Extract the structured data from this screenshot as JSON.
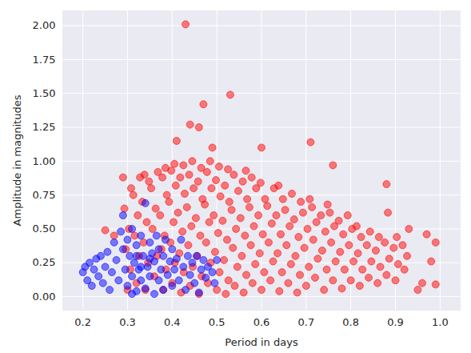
{
  "chart_data": {
    "type": "scatter",
    "x_label": "Period in days",
    "y_label": "Amplitude in magnitudes",
    "xlim": [
      0.155,
      1.045
    ],
    "ylim": [
      -0.1,
      2.11
    ],
    "xticks": [
      0.2,
      0.3,
      0.4,
      0.5,
      0.6,
      0.7,
      0.8,
      0.9,
      {
        "value": 1.0,
        "label": "1.0"
      }
    ],
    "yticks": [
      {
        "value": 0,
        "label": "0.00"
      },
      {
        "value": 0.25,
        "label": "0.25"
      },
      {
        "value": 0.5,
        "label": "0.50"
      },
      {
        "value": 0.75,
        "label": "0.75"
      },
      {
        "value": 1.0,
        "label": "1.00"
      },
      {
        "value": 1.25,
        "label": "1.25"
      },
      {
        "value": 1.5,
        "label": "1.50"
      },
      {
        "value": 1.75,
        "label": "1.75"
      },
      {
        "value": 2.0,
        "label": "2.00"
      }
    ],
    "grid": true,
    "series": [
      {
        "color": "#ff0000",
        "x": [
          0.3,
          0.306,
          0.296,
          0.303,
          0.293,
          0.308,
          0.32,
          0.326,
          0.316,
          0.323,
          0.313,
          0.328,
          0.34,
          0.346,
          0.336,
          0.343,
          0.333,
          0.348,
          0.338,
          0.36,
          0.366,
          0.356,
          0.363,
          0.353,
          0.368,
          0.38,
          0.386,
          0.376,
          0.383,
          0.373,
          0.388,
          0.378,
          0.385,
          0.4,
          0.406,
          0.396,
          0.403,
          0.393,
          0.408,
          0.398,
          0.405,
          0.42,
          0.426,
          0.416,
          0.423,
          0.413,
          0.428,
          0.418,
          0.425,
          0.44,
          0.446,
          0.436,
          0.443,
          0.433,
          0.448,
          0.438,
          0.445,
          0.46,
          0.466,
          0.456,
          0.463,
          0.453,
          0.468,
          0.458,
          0.465,
          0.48,
          0.486,
          0.476,
          0.483,
          0.473,
          0.488,
          0.478,
          0.485,
          0.5,
          0.506,
          0.496,
          0.503,
          0.493,
          0.508,
          0.498,
          0.505,
          0.52,
          0.526,
          0.516,
          0.523,
          0.513,
          0.528,
          0.518,
          0.525,
          0.54,
          0.546,
          0.536,
          0.543,
          0.533,
          0.548,
          0.538,
          0.56,
          0.566,
          0.556,
          0.563,
          0.553,
          0.568,
          0.558,
          0.565,
          0.58,
          0.586,
          0.576,
          0.583,
          0.573,
          0.588,
          0.578,
          0.6,
          0.606,
          0.596,
          0.603,
          0.593,
          0.608,
          0.598,
          0.62,
          0.626,
          0.616,
          0.623,
          0.613,
          0.628,
          0.64,
          0.646,
          0.636,
          0.643,
          0.633,
          0.648,
          0.638,
          0.66,
          0.666,
          0.656,
          0.663,
          0.653,
          0.668,
          0.68,
          0.686,
          0.676,
          0.683,
          0.673,
          0.688,
          0.7,
          0.706,
          0.696,
          0.703,
          0.693,
          0.708,
          0.72,
          0.726,
          0.716,
          0.723,
          0.713,
          0.74,
          0.746,
          0.736,
          0.743,
          0.733,
          0.748,
          0.76,
          0.766,
          0.756,
          0.763,
          0.753,
          0.78,
          0.786,
          0.776,
          0.783,
          0.773,
          0.8,
          0.806,
          0.796,
          0.803,
          0.793,
          0.82,
          0.826,
          0.816,
          0.823,
          0.813,
          0.84,
          0.846,
          0.836,
          0.843,
          0.86,
          0.866,
          0.856,
          0.863,
          0.88,
          0.886,
          0.876,
          0.883,
          0.9,
          0.906,
          0.896,
          0.903,
          0.92,
          0.926,
          0.916,
          0.43,
          0.53,
          0.47,
          0.44,
          0.46,
          0.71,
          0.41,
          0.6,
          0.49,
          0.76,
          0.88,
          0.29,
          0.25,
          0.27,
          0.99,
          0.98,
          0.99,
          0.97,
          0.93,
          0.96,
          0.95
        ],
        "values": [
          0.05,
          0.2,
          0.35,
          0.5,
          0.65,
          0.8,
          0.1,
          0.3,
          0.45,
          0.6,
          0.75,
          0.88,
          0.05,
          0.25,
          0.4,
          0.55,
          0.7,
          0.85,
          0.9,
          0.15,
          0.3,
          0.5,
          0.65,
          0.8,
          0.92,
          0.05,
          0.2,
          0.35,
          0.45,
          0.6,
          0.75,
          0.88,
          0.95,
          0.1,
          0.25,
          0.4,
          0.55,
          0.7,
          0.82,
          0.93,
          0.98,
          0.03,
          0.18,
          0.32,
          0.48,
          0.62,
          0.76,
          0.88,
          0.97,
          0.08,
          0.22,
          0.38,
          0.52,
          0.66,
          0.8,
          0.9,
          1.0,
          0.02,
          0.15,
          0.3,
          0.45,
          0.58,
          0.72,
          0.85,
          0.95,
          0.1,
          0.25,
          0.4,
          0.55,
          0.68,
          0.8,
          0.92,
          1.0,
          0.05,
          0.18,
          0.33,
          0.47,
          0.6,
          0.74,
          0.86,
          0.96,
          0.02,
          0.12,
          0.27,
          0.42,
          0.56,
          0.7,
          0.82,
          0.94,
          0.08,
          0.22,
          0.36,
          0.5,
          0.64,
          0.78,
          0.9,
          0.03,
          0.16,
          0.3,
          0.45,
          0.58,
          0.72,
          0.85,
          0.93,
          0.1,
          0.24,
          0.38,
          0.52,
          0.66,
          0.8,
          0.88,
          0.05,
          0.18,
          0.32,
          0.46,
          0.6,
          0.72,
          0.84,
          0.12,
          0.26,
          0.4,
          0.54,
          0.67,
          0.8,
          0.04,
          0.18,
          0.32,
          0.46,
          0.6,
          0.72,
          0.82,
          0.1,
          0.24,
          0.38,
          0.52,
          0.64,
          0.76,
          0.03,
          0.16,
          0.3,
          0.44,
          0.57,
          0.7,
          0.08,
          0.22,
          0.36,
          0.5,
          0.62,
          0.72,
          0.14,
          0.28,
          0.42,
          0.55,
          0.66,
          0.05,
          0.2,
          0.34,
          0.48,
          0.6,
          0.68,
          0.12,
          0.26,
          0.4,
          0.52,
          0.62,
          0.06,
          0.2,
          0.33,
          0.46,
          0.56,
          0.12,
          0.26,
          0.38,
          0.5,
          0.6,
          0.08,
          0.2,
          0.32,
          0.44,
          0.52,
          0.14,
          0.26,
          0.38,
          0.48,
          0.1,
          0.22,
          0.34,
          0.44,
          0.16,
          0.28,
          0.4,
          0.62,
          0.12,
          0.24,
          0.36,
          0.44,
          0.2,
          0.3,
          0.38,
          2.01,
          1.49,
          1.42,
          1.27,
          1.25,
          1.14,
          1.15,
          1.1,
          1.1,
          0.97,
          0.83,
          0.88,
          0.49,
          0.45,
          0.4,
          0.26,
          0.09,
          0.46,
          0.5,
          0.1,
          0.05
        ]
      },
      {
        "color": "#0000ff",
        "x": [
          0.2,
          0.205,
          0.21,
          0.215,
          0.22,
          0.225,
          0.23,
          0.235,
          0.24,
          0.245,
          0.25,
          0.255,
          0.26,
          0.265,
          0.27,
          0.275,
          0.28,
          0.285,
          0.29,
          0.29,
          0.295,
          0.3,
          0.3,
          0.305,
          0.31,
          0.31,
          0.315,
          0.32,
          0.32,
          0.325,
          0.33,
          0.33,
          0.335,
          0.34,
          0.34,
          0.345,
          0.35,
          0.35,
          0.355,
          0.36,
          0.36,
          0.365,
          0.37,
          0.37,
          0.375,
          0.38,
          0.38,
          0.385,
          0.39,
          0.395,
          0.4,
          0.4,
          0.405,
          0.41,
          0.415,
          0.42,
          0.425,
          0.43,
          0.435,
          0.44,
          0.445,
          0.45,
          0.455,
          0.46,
          0.465,
          0.47,
          0.475,
          0.48,
          0.49,
          0.5,
          0.495,
          0.31,
          0.33,
          0.35,
          0.32
        ],
        "values": [
          0.18,
          0.22,
          0.12,
          0.25,
          0.08,
          0.2,
          0.28,
          0.15,
          0.3,
          0.1,
          0.22,
          0.33,
          0.05,
          0.18,
          0.4,
          0.27,
          0.12,
          0.48,
          0.6,
          0.35,
          0.2,
          0.08,
          0.42,
          0.3,
          0.15,
          0.5,
          0.25,
          0.04,
          0.38,
          0.2,
          0.45,
          0.12,
          0.3,
          0.69,
          0.06,
          0.22,
          0.4,
          0.15,
          0.32,
          0.02,
          0.26,
          0.45,
          0.12,
          0.35,
          0.2,
          0.05,
          0.3,
          0.42,
          0.16,
          0.26,
          0.08,
          0.35,
          0.2,
          0.28,
          0.12,
          0.42,
          0.22,
          0.05,
          0.3,
          0.16,
          0.25,
          0.1,
          0.3,
          0.03,
          0.2,
          0.27,
          0.14,
          0.22,
          0.18,
          0.27,
          0.1,
          0.02,
          0.22,
          0.28,
          0.3
        ]
      }
    ]
  }
}
